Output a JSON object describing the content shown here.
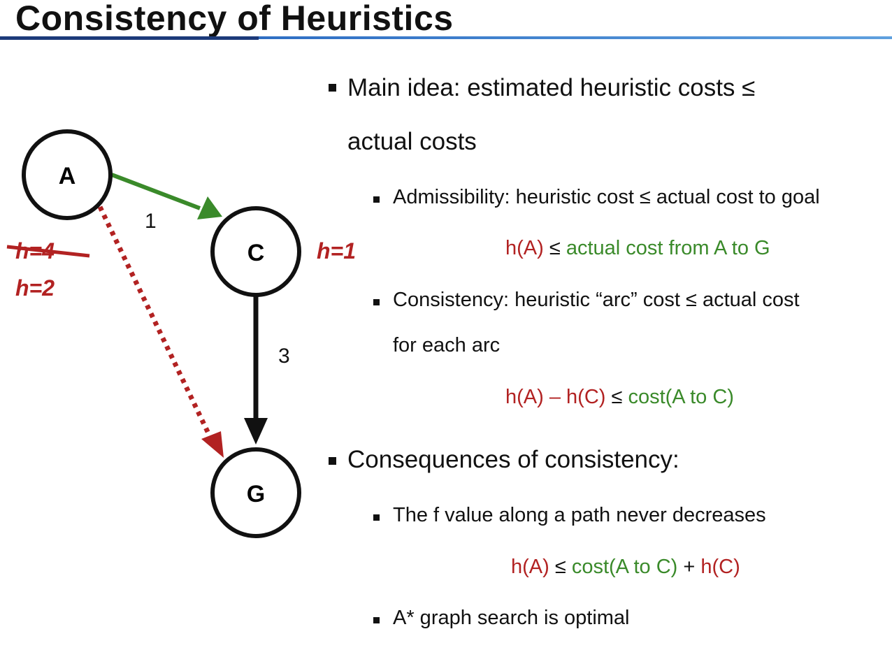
{
  "title": "Consistency of Heuristics",
  "colors": {
    "red": "#b22222",
    "green": "#3a8a2a",
    "black": "#111111",
    "title_rule": "#2f6fc4"
  },
  "graph": {
    "nodes": {
      "a": "A",
      "c": "C",
      "g": "G"
    },
    "edges": {
      "a_to_c_cost": "1",
      "c_to_g_cost": "3"
    },
    "h_a_old": "h=4",
    "h_a_new": "h=2",
    "h_c": "h=1"
  },
  "bullets": {
    "main_idea_line1": "Main idea: estimated heuristic costs ≤",
    "main_idea_line2": "actual costs",
    "admissibility": "Admissibility: heuristic cost ≤ actual cost to goal",
    "admissibility_formula": {
      "lhs": "h(A)",
      "op": " ≤ ",
      "rhs": "actual cost from A to G"
    },
    "consistency_line1": "Consistency: heuristic “arc” cost ≤ actual cost",
    "consistency_line2": "for each arc",
    "consistency_formula": {
      "lhs": "h(A) – h(C)",
      "op": " ≤ ",
      "rhs": "cost(A to C)"
    },
    "consequences": "Consequences of consistency:",
    "f_nondecreasing": "The f value along a path never decreases",
    "f_formula": {
      "lhs": "h(A)",
      "op1": " ≤ ",
      "mid": "cost(A to C)",
      "op2": " + ",
      "rhs": "h(C)"
    },
    "astar_optimal": "A* graph search is optimal"
  }
}
